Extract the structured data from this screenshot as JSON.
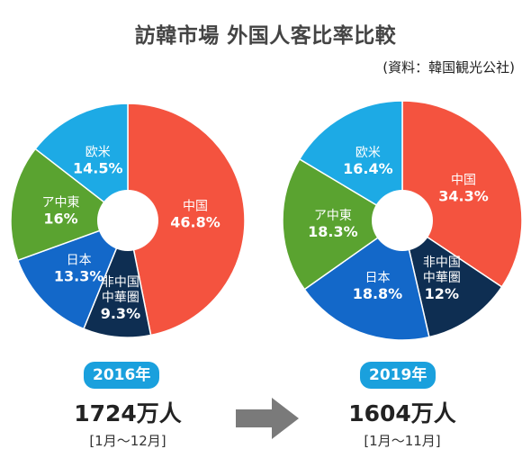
{
  "title": "訪韓市場 外国人客比率比較",
  "source": "(資料：韓国観光公社)",
  "chart_data": [
    {
      "type": "pie",
      "year": "2016年",
      "total": "1724万人",
      "period": "[1月～12月]",
      "slices": [
        {
          "label": "中国",
          "value": 46.8,
          "display": "46.8%",
          "color": "#f4533f"
        },
        {
          "label": "非中国\n中華圏",
          "value": 9.3,
          "display": "9.3%",
          "color": "#0e2e52"
        },
        {
          "label": "日本",
          "value": 13.3,
          "display": "13.3%",
          "color": "#1368c9"
        },
        {
          "label": "ア中東",
          "value": 16.0,
          "display": "16%",
          "color": "#5aa330"
        },
        {
          "label": "欧米",
          "value": 14.5,
          "display": "14.5%",
          "color": "#1daae5"
        }
      ]
    },
    {
      "type": "pie",
      "year": "2019年",
      "total": "1604万人",
      "period": "[1月～11月]",
      "slices": [
        {
          "label": "中国",
          "value": 34.3,
          "display": "34.3%",
          "color": "#f4533f"
        },
        {
          "label": "非中国\n中華圏",
          "value": 12.0,
          "display": "12%",
          "color": "#0e2e52"
        },
        {
          "label": "日本",
          "value": 18.8,
          "display": "18.8%",
          "color": "#1368c9"
        },
        {
          "label": "ア中東",
          "value": 18.3,
          "display": "18.3%",
          "color": "#5aa330"
        },
        {
          "label": "欧米",
          "value": 16.4,
          "display": "16.4%",
          "color": "#1daae5"
        }
      ]
    }
  ],
  "arrow_icon": "right-arrow-icon"
}
